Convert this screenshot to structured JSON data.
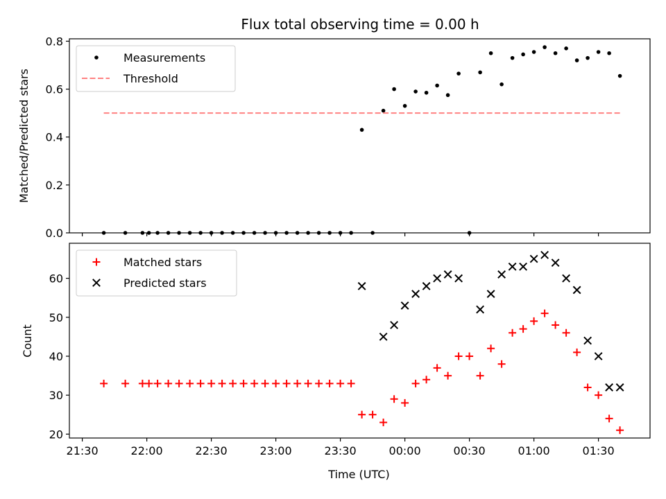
{
  "title": "Flux total observing time = 0.00 h",
  "colors": {
    "measurement": "#000000",
    "threshold": "#ff8080",
    "matched": "#ff0000",
    "predicted": "#000000"
  },
  "chart_data": [
    {
      "type": "scatter",
      "ylabel": "Matched/Predicted stars",
      "xlabel": "",
      "xlim": [
        "21:24",
        "01:54"
      ],
      "ylim": [
        0,
        0.81
      ],
      "yticks": [
        0.0,
        0.2,
        0.4,
        0.6,
        0.8
      ],
      "ytick_labels": [
        "0.0",
        "0.2",
        "0.4",
        "0.6",
        "0.8"
      ],
      "xticks": [
        "21:30",
        "22:00",
        "22:30",
        "23:00",
        "23:30",
        "00:00",
        "00:30",
        "01:00",
        "01:30"
      ],
      "grid": false,
      "legend": {
        "placement": "top-left",
        "entries": [
          "Measurements",
          "Threshold"
        ]
      },
      "series": [
        {
          "name": "Measurements",
          "marker": "dot",
          "x": [
            "21:40",
            "21:50",
            "21:58",
            "22:01",
            "22:05",
            "22:10",
            "22:15",
            "22:20",
            "22:25",
            "22:30",
            "22:35",
            "22:40",
            "22:45",
            "22:50",
            "22:55",
            "23:00",
            "23:05",
            "23:10",
            "23:15",
            "23:20",
            "23:25",
            "23:30",
            "23:35",
            "23:40",
            "23:45",
            "23:50",
            "23:55",
            "00:00",
            "00:05",
            "00:10",
            "00:15",
            "00:20",
            "00:25",
            "00:30",
            "00:35",
            "00:40",
            "00:45",
            "00:50",
            "00:55",
            "01:00",
            "01:05",
            "01:10",
            "01:15",
            "01:20",
            "01:25",
            "01:30",
            "01:35",
            "01:40"
          ],
          "y": [
            0,
            0,
            0,
            0,
            0,
            0,
            0,
            0,
            0,
            0,
            0,
            0,
            0,
            0,
            0,
            0,
            0,
            0,
            0,
            0,
            0,
            0,
            0,
            0.43,
            0,
            0.51,
            0.6,
            0.53,
            0.59,
            0.585,
            0.615,
            0.575,
            0.665,
            0,
            0.67,
            0.75,
            0.62,
            0.73,
            0.745,
            0.755,
            0.775,
            0.75,
            0.77,
            0.72,
            0.73,
            0.755,
            0.75,
            0.655
          ]
        },
        {
          "name": "Threshold",
          "style": "dashed",
          "x": [
            "21:40",
            "01:40"
          ],
          "y": [
            0.5,
            0.5
          ]
        }
      ]
    },
    {
      "type": "scatter",
      "ylabel": "Count",
      "xlabel": "Time (UTC)",
      "xlim": [
        "21:24",
        "01:54"
      ],
      "ylim": [
        19,
        69
      ],
      "yticks": [
        20,
        30,
        40,
        50,
        60
      ],
      "ytick_labels": [
        "20",
        "30",
        "40",
        "50",
        "60"
      ],
      "xticks": [
        "21:30",
        "22:00",
        "22:30",
        "23:00",
        "23:30",
        "00:00",
        "00:30",
        "01:00",
        "01:30"
      ],
      "grid": false,
      "legend": {
        "placement": "top-left",
        "entries": [
          "Matched stars",
          "Predicted stars"
        ]
      },
      "series": [
        {
          "name": "Matched stars",
          "marker": "plus",
          "x": [
            "21:40",
            "21:50",
            "21:58",
            "22:01",
            "22:05",
            "22:10",
            "22:15",
            "22:20",
            "22:25",
            "22:30",
            "22:35",
            "22:40",
            "22:45",
            "22:50",
            "22:55",
            "23:00",
            "23:05",
            "23:10",
            "23:15",
            "23:20",
            "23:25",
            "23:30",
            "23:35",
            "23:40",
            "23:45",
            "23:50",
            "23:55",
            "00:00",
            "00:05",
            "00:10",
            "00:15",
            "00:20",
            "00:25",
            "00:30",
            "00:35",
            "00:40",
            "00:45",
            "00:50",
            "00:55",
            "01:00",
            "01:05",
            "01:10",
            "01:15",
            "01:20",
            "01:25",
            "01:30",
            "01:35",
            "01:40"
          ],
          "y": [
            33,
            33,
            33,
            33,
            33,
            33,
            33,
            33,
            33,
            33,
            33,
            33,
            33,
            33,
            33,
            33,
            33,
            33,
            33,
            33,
            33,
            33,
            33,
            25,
            25,
            23,
            29,
            28,
            33,
            34,
            37,
            35,
            40,
            40,
            35,
            42,
            38,
            46,
            47,
            49,
            51,
            48,
            46,
            41,
            32,
            30,
            24,
            21
          ]
        },
        {
          "name": "Predicted stars",
          "marker": "x",
          "x": [
            "23:40",
            "23:50",
            "23:55",
            "00:00",
            "00:05",
            "00:10",
            "00:15",
            "00:20",
            "00:25",
            "00:35",
            "00:40",
            "00:45",
            "00:50",
            "00:55",
            "01:00",
            "01:05",
            "01:10",
            "01:15",
            "01:20",
            "01:25",
            "01:30",
            "01:35",
            "01:40"
          ],
          "y": [
            58,
            45,
            48,
            53,
            56,
            58,
            60,
            61,
            60,
            52,
            56,
            61,
            63,
            63,
            65,
            66,
            64,
            60,
            57,
            44,
            40,
            32,
            32
          ]
        }
      ]
    }
  ]
}
